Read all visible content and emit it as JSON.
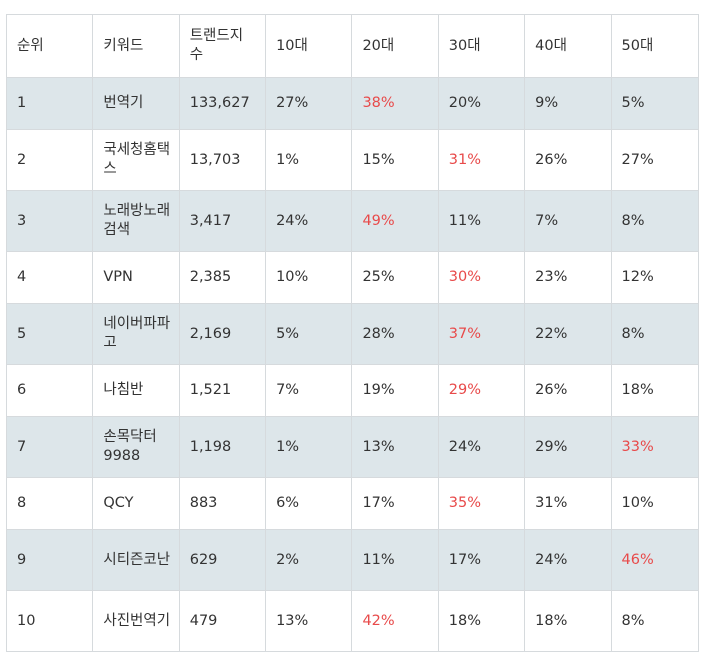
{
  "table": {
    "headers": [
      "순위",
      "키워드",
      "트랜드지수",
      "10대",
      "20대",
      "30대",
      "40대",
      "50대"
    ],
    "rows": [
      {
        "rank": "1",
        "keyword": "번역기",
        "trend": "133,627",
        "a10": "27%",
        "a20": "38%",
        "a30": "20%",
        "a40": "9%",
        "a50": "5%"
      },
      {
        "rank": "2",
        "keyword": "국세청홈택스",
        "trend": "13,703",
        "a10": "1%",
        "a20": "15%",
        "a30": "31%",
        "a40": "26%",
        "a50": "27%"
      },
      {
        "rank": "3",
        "keyword": "노래방노래검색",
        "trend": "3,417",
        "a10": "24%",
        "a20": "49%",
        "a30": "11%",
        "a40": "7%",
        "a50": "8%"
      },
      {
        "rank": "4",
        "keyword": "VPN",
        "trend": "2,385",
        "a10": "10%",
        "a20": "25%",
        "a30": "30%",
        "a40": "23%",
        "a50": "12%"
      },
      {
        "rank": "5",
        "keyword": "네이버파파고",
        "trend": "2,169",
        "a10": "5%",
        "a20": "28%",
        "a30": "37%",
        "a40": "22%",
        "a50": "8%"
      },
      {
        "rank": "6",
        "keyword": "나침반",
        "trend": "1,521",
        "a10": "7%",
        "a20": "19%",
        "a30": "29%",
        "a40": "26%",
        "a50": "18%"
      },
      {
        "rank": "7",
        "keyword": "손목닥터9988",
        "trend": "1,198",
        "a10": "1%",
        "a20": "13%",
        "a30": "24%",
        "a40": "29%",
        "a50": "33%"
      },
      {
        "rank": "8",
        "keyword": "QCY",
        "trend": "883",
        "a10": "6%",
        "a20": "17%",
        "a30": "35%",
        "a40": "31%",
        "a50": "10%"
      },
      {
        "rank": "9",
        "keyword": "시티즌코난",
        "trend": "629",
        "a10": "2%",
        "a20": "11%",
        "a30": "17%",
        "a40": "24%",
        "a50": "46%"
      },
      {
        "rank": "10",
        "keyword": "사진번역기",
        "trend": "479",
        "a10": "13%",
        "a20": "42%",
        "a30": "18%",
        "a40": "18%",
        "a50": "8%"
      }
    ]
  },
  "colors": {
    "highlight": "#e84a4a",
    "stripe": "#dde6ea",
    "border": "#d6dadd",
    "text": "#333333"
  }
}
